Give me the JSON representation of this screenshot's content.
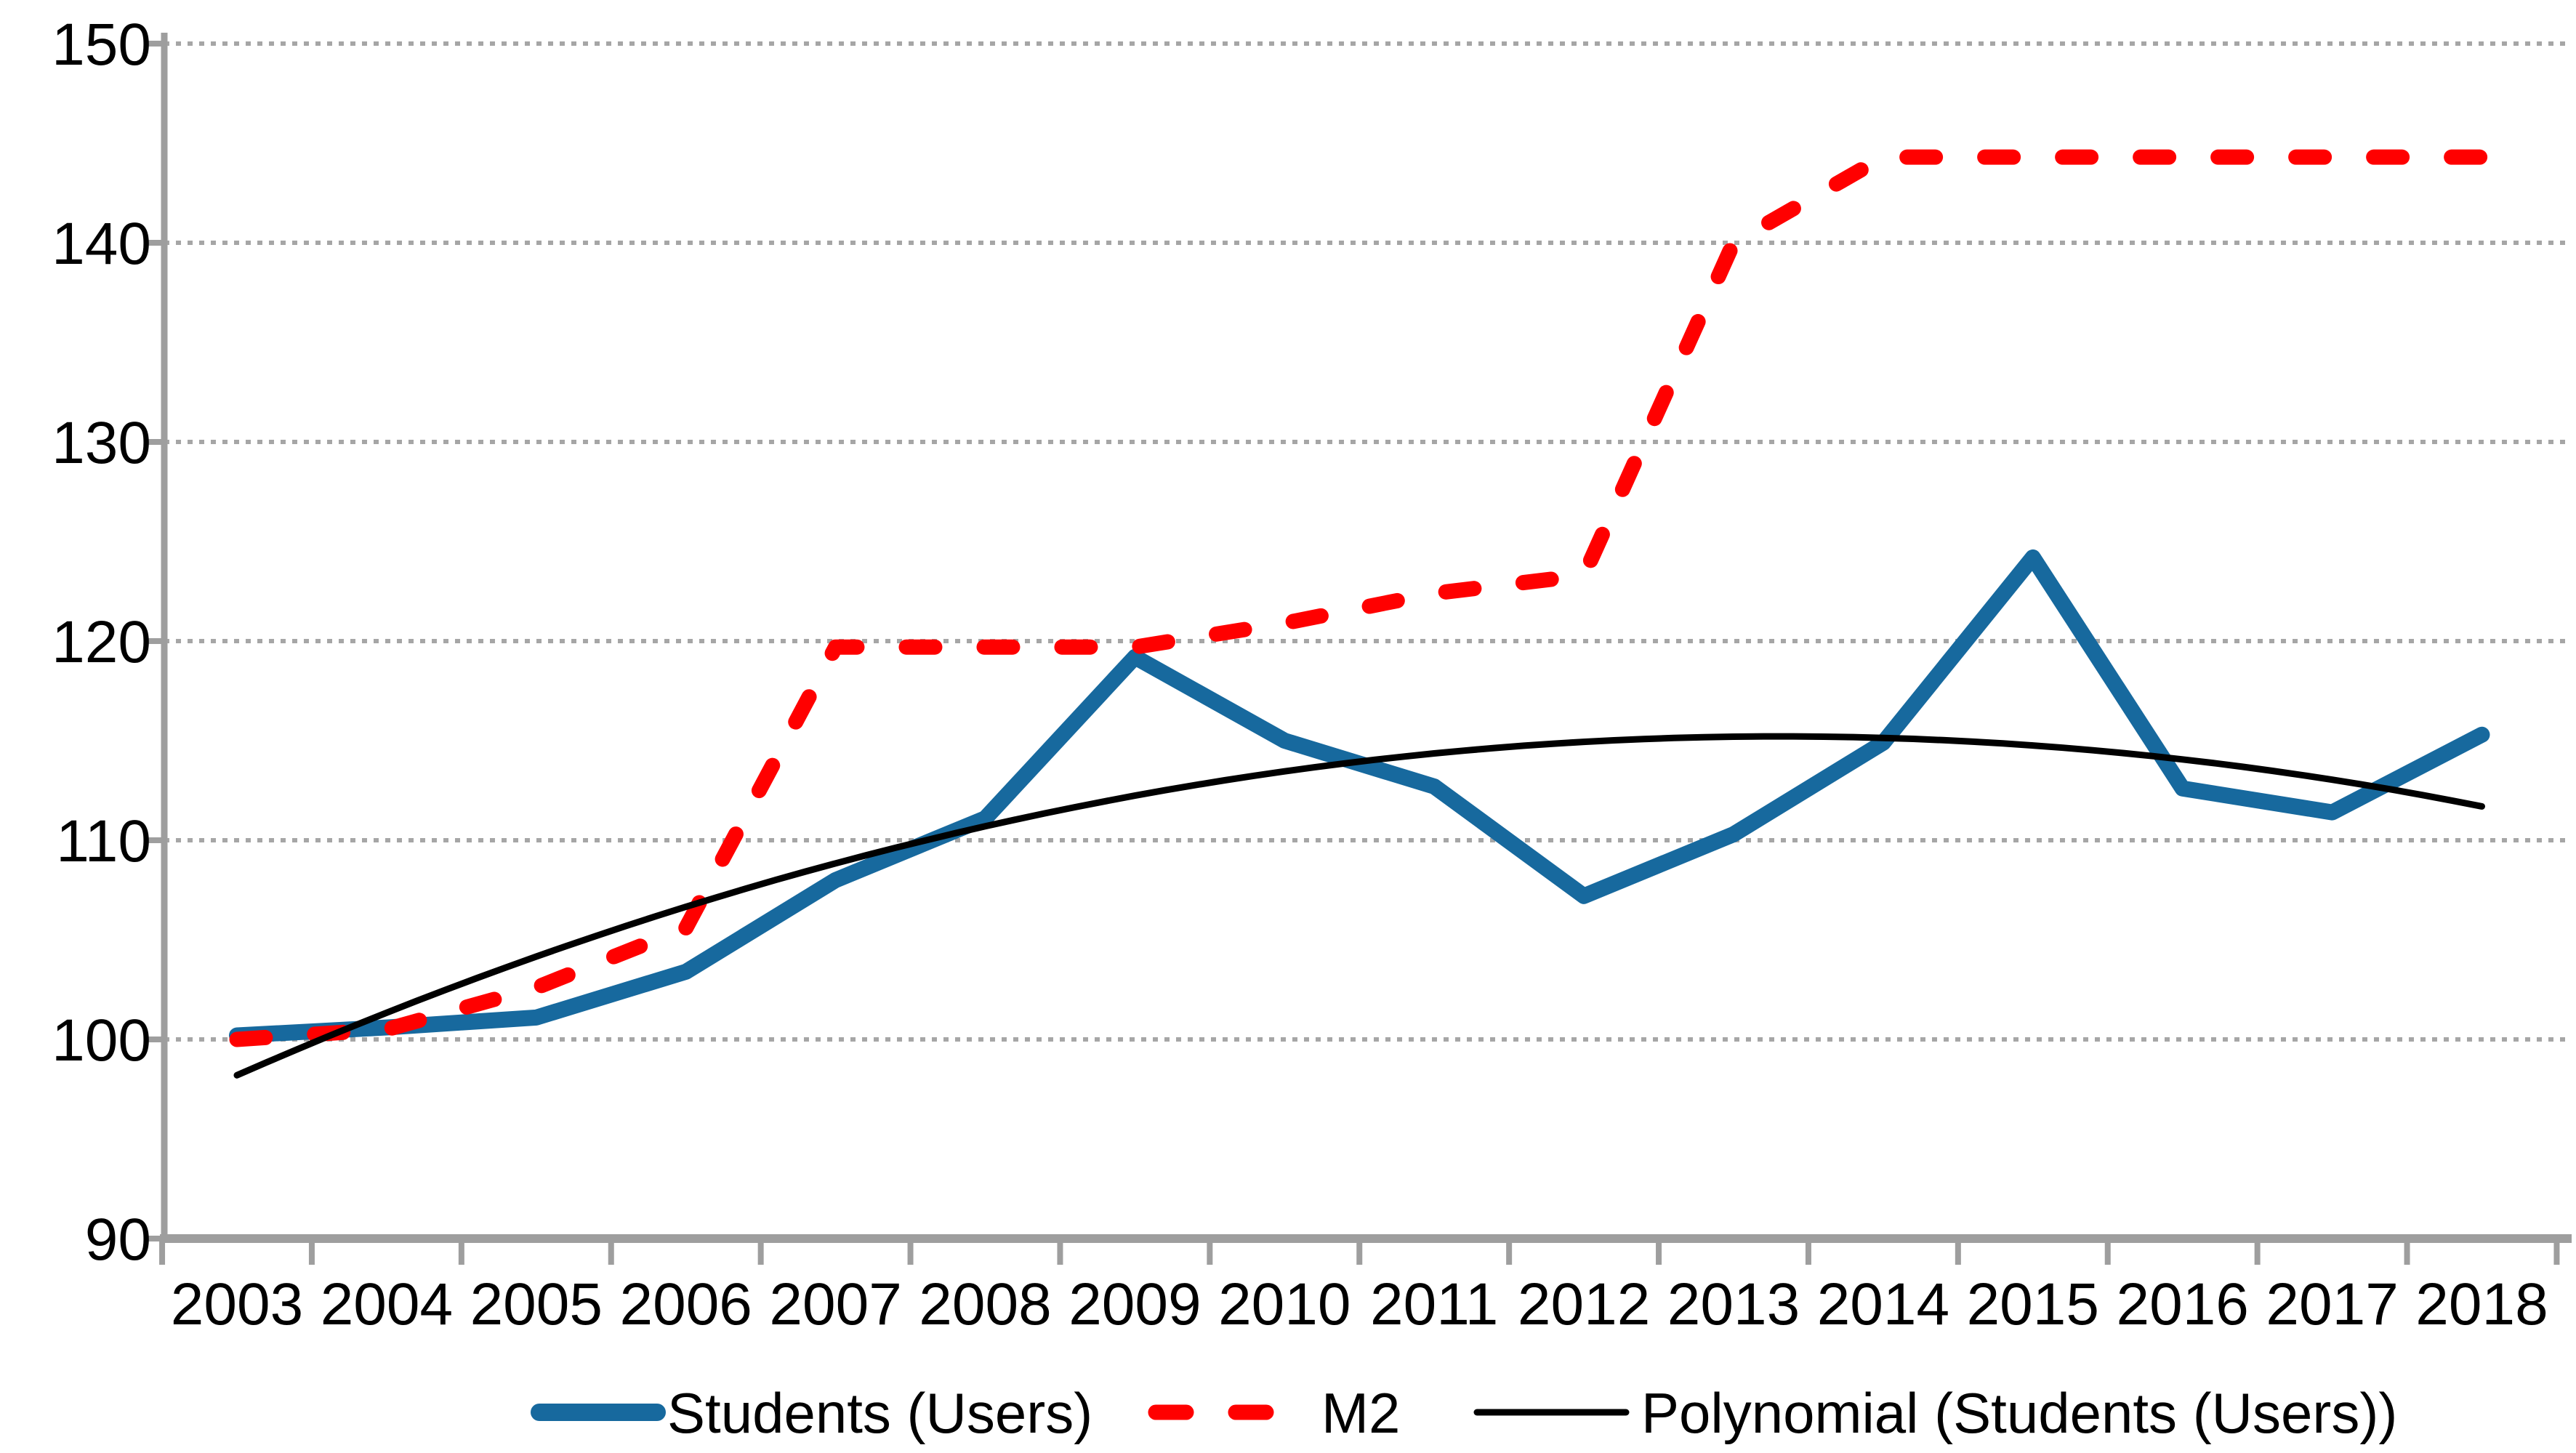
{
  "chart_data": {
    "type": "line",
    "title": "",
    "xlabel": "",
    "ylabel": "",
    "x": [
      2003,
      2004,
      2005,
      2006,
      2007,
      2008,
      2009,
      2010,
      2011,
      2012,
      2013,
      2014,
      2015,
      2016,
      2017,
      2018
    ],
    "series": [
      {
        "name": "Students (Users)",
        "color": "#17699E",
        "line_style": "solid",
        "thickness": "thick",
        "values": [
          100.2,
          100.6,
          101.1,
          103.4,
          108.0,
          111.1,
          119.2,
          115.0,
          112.7,
          107.2,
          110.3,
          114.9,
          124.2,
          112.6,
          111.4,
          115.3
        ]
      },
      {
        "name": "M2",
        "color": "#FF0000",
        "line_style": "dashed",
        "thickness": "thick",
        "values": [
          100.0,
          100.5,
          102.6,
          105.6,
          119.7,
          119.7,
          119.7,
          120.9,
          122.4,
          123.3,
          140.0,
          144.3,
          144.3,
          144.3,
          144.3,
          144.3
        ]
      },
      {
        "name": "Polynomial (Students (Users))",
        "color": "#000000",
        "line_style": "solid",
        "thickness": "thin",
        "trendline": {
          "kind": "polynomial",
          "order": 2,
          "coeffs_c0_c1_c2": [
            98.2,
            3.3,
            -0.16
          ]
        },
        "values": [
          98.2,
          101.3,
          104.2,
          106.7,
          108.8,
          110.7,
          112.2,
          113.5,
          114.4,
          114.9,
          115.2,
          115.1,
          114.8,
          114.1,
          113.0,
          111.7
        ]
      }
    ],
    "ylim": [
      90,
      150
    ],
    "yticks": [
      90,
      100,
      110,
      120,
      130,
      140,
      150
    ],
    "grid": {
      "horizontal": true,
      "style": "dotted",
      "color": "#A6A6A6"
    },
    "axis_color": "#9E9E9E",
    "text_color": "#000000",
    "legend_position": "bottom"
  },
  "legend": {
    "items": [
      {
        "label": "Students (Users)",
        "swatch": "thick-solid-line",
        "color": "#17699E"
      },
      {
        "label": "M2",
        "swatch": "thick-dashed-line",
        "color": "#FF0000"
      },
      {
        "label": "Polynomial (Students (Users))",
        "swatch": "thin-solid-line",
        "color": "#000000"
      }
    ]
  }
}
